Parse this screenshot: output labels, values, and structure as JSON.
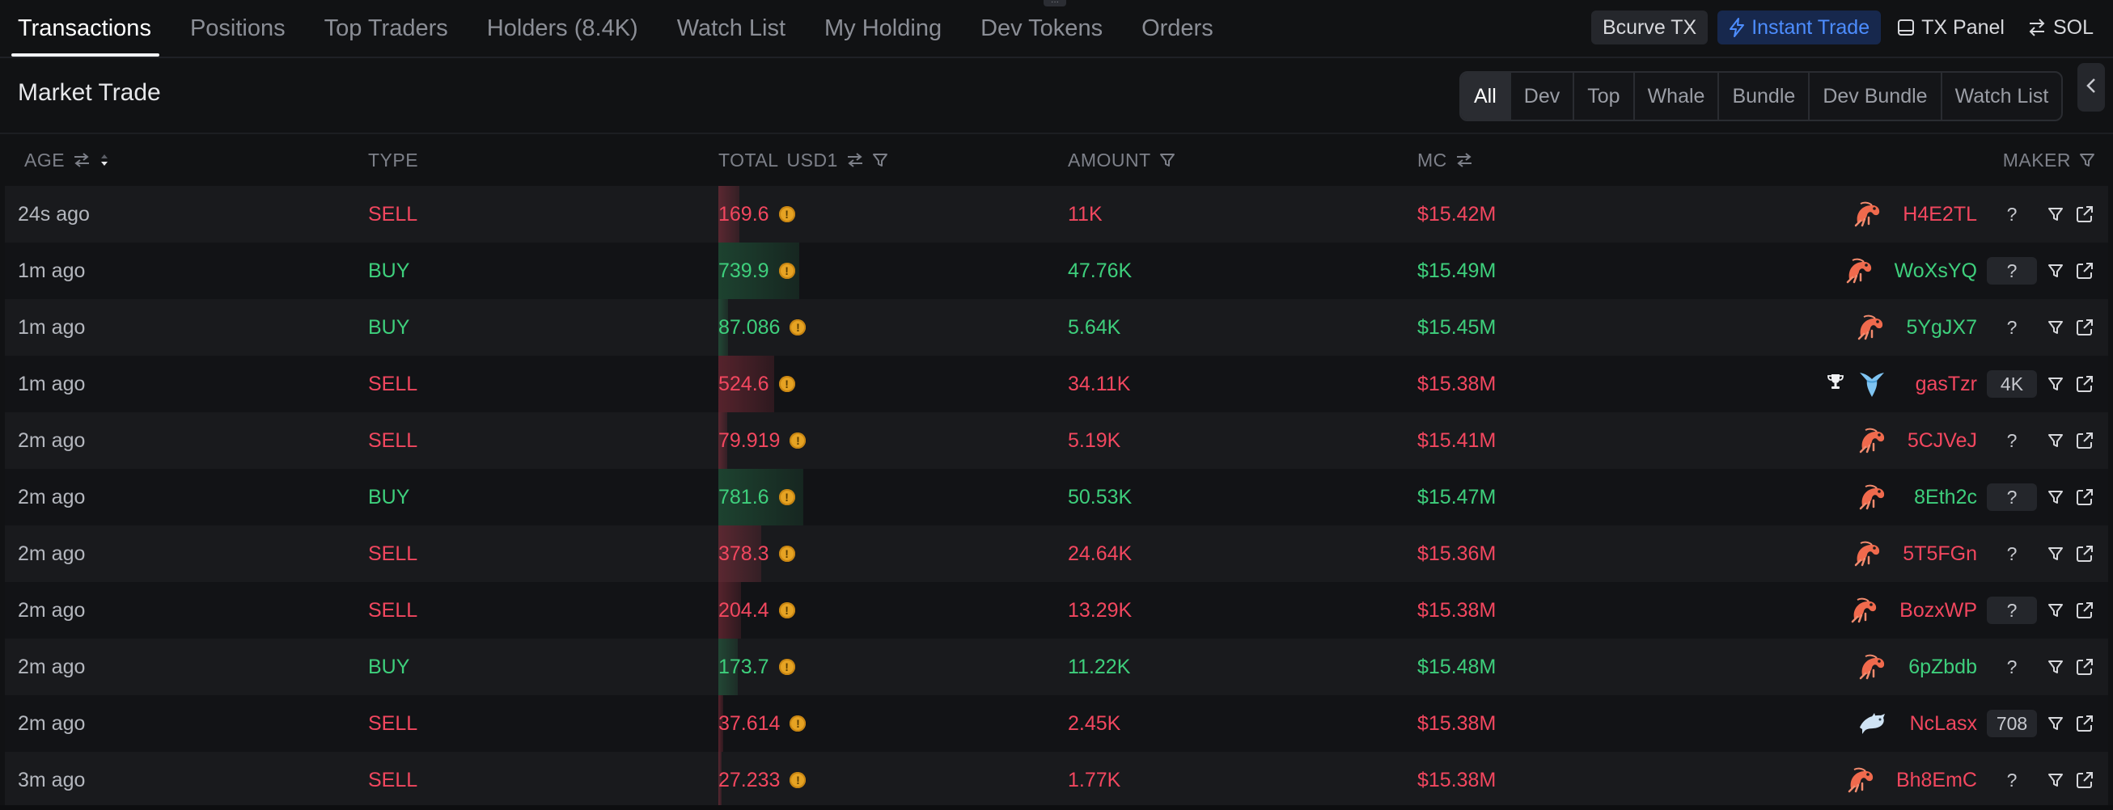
{
  "tabs": [
    {
      "label": "Transactions",
      "active": true
    },
    {
      "label": "Positions"
    },
    {
      "label": "Top Traders"
    },
    {
      "label": "Holders (8.4K)"
    },
    {
      "label": "Watch List"
    },
    {
      "label": "My Holding"
    },
    {
      "label": "Dev Tokens"
    },
    {
      "label": "Orders"
    }
  ],
  "toolbar": {
    "bcurve": "Bcurve TX",
    "instant_trade": "Instant Trade",
    "tx_panel": "TX Panel",
    "sol": "SOL"
  },
  "market": {
    "title": "Market Trade",
    "filters": [
      "All",
      "Dev",
      "Top",
      "Whale",
      "Bundle",
      "Dev Bundle",
      "Watch List"
    ],
    "active_filter": "All"
  },
  "columns": {
    "age": "AGE",
    "type": "TYPE",
    "total": "TOTAL",
    "total_unit": "USD1",
    "amount": "AMOUNT",
    "mc": "MC",
    "maker": "MAKER"
  },
  "colors": {
    "sell": "#f2475f",
    "buy": "#3ecf7c",
    "accent_blue": "#4d8dff",
    "coin": "#e6a323"
  },
  "rows": [
    {
      "age": "24s ago",
      "type": "SELL",
      "total": "169.6",
      "amount": "11K",
      "mc": "$15.42M",
      "maker": "H4E2TL",
      "badge": "?",
      "badge_box": false,
      "avatar": "shrimp-icon",
      "trophy": false,
      "bar_fraction": 0.26
    },
    {
      "age": "1m ago",
      "type": "BUY",
      "total": "739.9",
      "amount": "47.76K",
      "mc": "$15.49M",
      "maker": "WoXsYQ",
      "badge": "?",
      "badge_box": true,
      "avatar": "shrimp-icon",
      "trophy": false,
      "bar_fraction": 1.0
    },
    {
      "age": "1m ago",
      "type": "BUY",
      "total": "87.086",
      "amount": "5.64K",
      "mc": "$15.45M",
      "maker": "5YgJX7",
      "badge": "?",
      "badge_box": false,
      "avatar": "shrimp-icon",
      "trophy": false,
      "bar_fraction": 0.12
    },
    {
      "age": "1m ago",
      "type": "SELL",
      "total": "524.6",
      "amount": "34.11K",
      "mc": "$15.38M",
      "maker": "gasTzr",
      "badge": "4K",
      "badge_box": true,
      "avatar": "whale-icon",
      "trophy": true,
      "bar_fraction": 0.69
    },
    {
      "age": "2m ago",
      "type": "SELL",
      "total": "79.919",
      "amount": "5.19K",
      "mc": "$15.41M",
      "maker": "5CJVeJ",
      "badge": "?",
      "badge_box": false,
      "avatar": "shrimp-icon",
      "trophy": false,
      "bar_fraction": 0.11
    },
    {
      "age": "2m ago",
      "type": "BUY",
      "total": "781.6",
      "amount": "50.53K",
      "mc": "$15.47M",
      "maker": "8Eth2c",
      "badge": "?",
      "badge_box": true,
      "avatar": "shrimp-icon",
      "trophy": false,
      "bar_fraction": 1.05
    },
    {
      "age": "2m ago",
      "type": "SELL",
      "total": "378.3",
      "amount": "24.64K",
      "mc": "$15.36M",
      "maker": "5T5FGn",
      "badge": "?",
      "badge_box": false,
      "avatar": "shrimp-icon",
      "trophy": false,
      "bar_fraction": 0.53
    },
    {
      "age": "2m ago",
      "type": "SELL",
      "total": "204.4",
      "amount": "13.29K",
      "mc": "$15.38M",
      "maker": "BozxWP",
      "badge": "?",
      "badge_box": true,
      "avatar": "shrimp-icon",
      "trophy": false,
      "bar_fraction": 0.28
    },
    {
      "age": "2m ago",
      "type": "BUY",
      "total": "173.7",
      "amount": "11.22K",
      "mc": "$15.48M",
      "maker": "6pZbdb",
      "badge": "?",
      "badge_box": false,
      "avatar": "shrimp-icon",
      "trophy": false,
      "bar_fraction": 0.24
    },
    {
      "age": "2m ago",
      "type": "SELL",
      "total": "37.614",
      "amount": "2.45K",
      "mc": "$15.38M",
      "maker": "NcLasx",
      "badge": "708",
      "badge_box": true,
      "avatar": "dolphin-icon",
      "trophy": false,
      "bar_fraction": 0.06
    },
    {
      "age": "3m ago",
      "type": "SELL",
      "total": "27.233",
      "amount": "1.77K",
      "mc": "$15.38M",
      "maker": "Bh8EmC",
      "badge": "?",
      "badge_box": false,
      "avatar": "shrimp-icon",
      "trophy": false,
      "bar_fraction": 0.04
    }
  ]
}
